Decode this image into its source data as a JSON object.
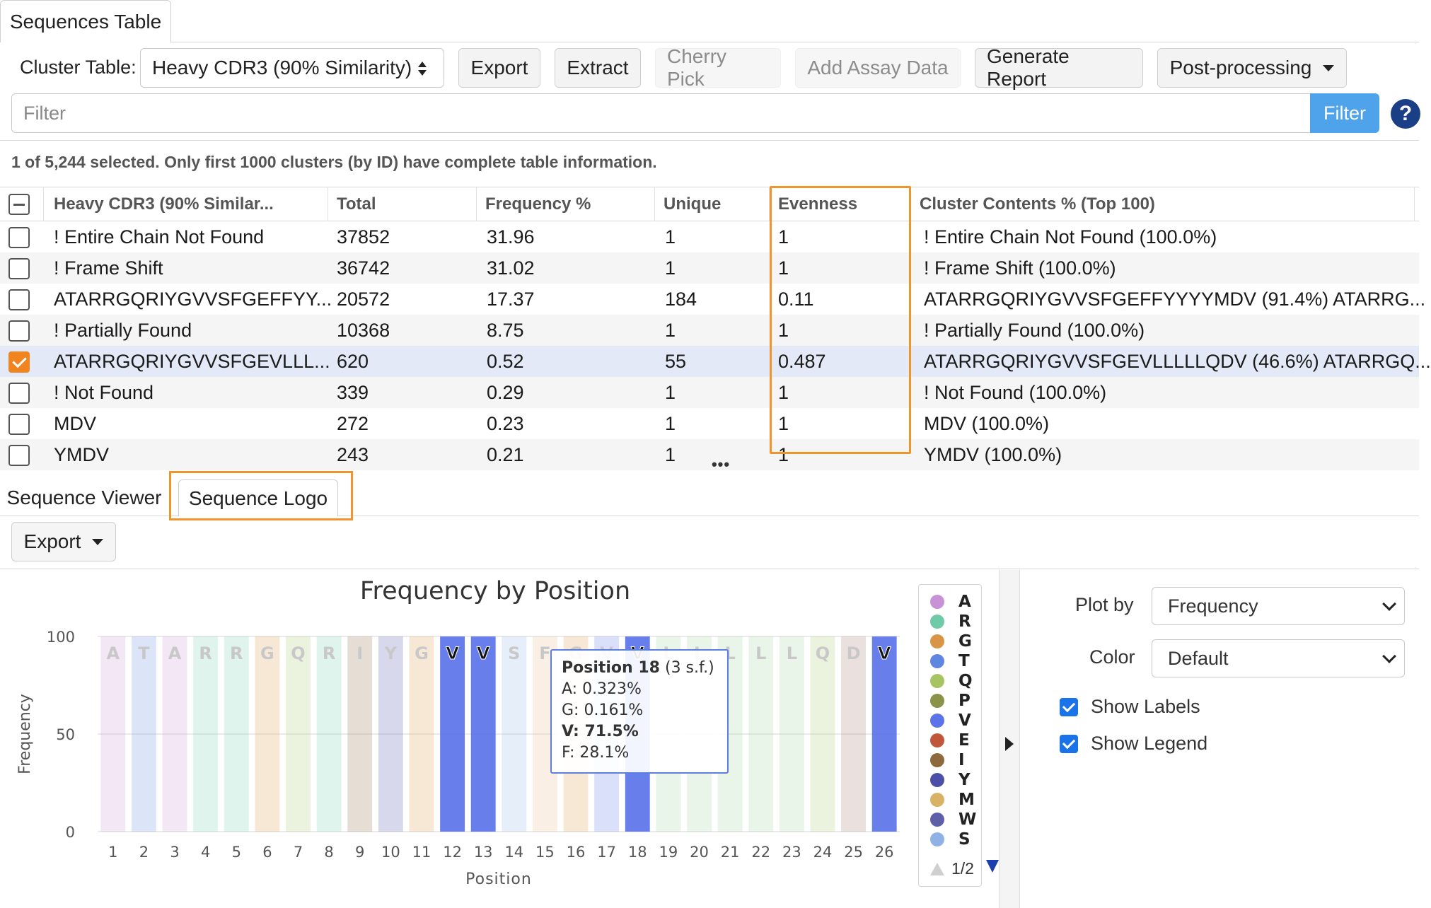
{
  "top_tab": {
    "label": "Sequences Table"
  },
  "toolbar": {
    "cluster_table_label": "Cluster Table:",
    "cluster_table_value": "Heavy CDR3 (90% Similarity)",
    "export": "Export",
    "extract": "Extract",
    "cherry_pick": "Cherry Pick",
    "add_assay_data": "Add Assay Data",
    "generate_report": "Generate Report",
    "post_processing": "Post-processing"
  },
  "filter": {
    "placeholder": "Filter",
    "button": "Filter",
    "help": "?"
  },
  "selection_info": "1 of 5,244 selected. Only first 1000 clusters (by ID) have complete table information.",
  "table": {
    "headers": [
      "Heavy CDR3 (90% Similar...",
      "Total",
      "Frequency %",
      "Unique",
      "Evenness",
      "Cluster Contents % (Top 100)"
    ],
    "rows": [
      {
        "name": "! Entire Chain Not Found",
        "total": "37852",
        "freq": "31.96",
        "unique": "1",
        "evenness": "1",
        "contents": "! Entire Chain Not Found (100.0%)",
        "checked": false
      },
      {
        "name": "! Frame Shift",
        "total": "36742",
        "freq": "31.02",
        "unique": "1",
        "evenness": "1",
        "contents": "! Frame Shift (100.0%)",
        "checked": false
      },
      {
        "name": "ATARRGQRIYGVVSFGEFFYY...",
        "total": "20572",
        "freq": "17.37",
        "unique": "184",
        "evenness": "0.11",
        "contents": "ATARRGQRIYGVVSFGEFFYYYYMDV (91.4%) ATARRG...",
        "checked": false
      },
      {
        "name": "! Partially Found",
        "total": "10368",
        "freq": "8.75",
        "unique": "1",
        "evenness": "1",
        "contents": "! Partially Found (100.0%)",
        "checked": false
      },
      {
        "name": "ATARRGQRIYGVVSFGEVLLL...",
        "total": "620",
        "freq": "0.52",
        "unique": "55",
        "evenness": "0.487",
        "contents": "ATARRGQRIYGVVSFGEVLLLLLQDV (46.6%) ATARRGQ...",
        "checked": true
      },
      {
        "name": "! Not Found",
        "total": "339",
        "freq": "0.29",
        "unique": "1",
        "evenness": "1",
        "contents": "! Not Found (100.0%)",
        "checked": false
      },
      {
        "name": "MDV",
        "total": "272",
        "freq": "0.23",
        "unique": "1",
        "evenness": "1",
        "contents": "MDV (100.0%)",
        "checked": false
      },
      {
        "name": "YMDV",
        "total": "243",
        "freq": "0.21",
        "unique": "1",
        "evenness": "1",
        "contents": "YMDV (100.0%)",
        "checked": false
      }
    ]
  },
  "resize_handle": "•••",
  "lower_tabs": {
    "viewer": "Sequence Viewer",
    "logo": "Sequence Logo"
  },
  "logo_export": "Export",
  "chart_data": {
    "type": "bar",
    "title": "Frequency by Position",
    "xlabel": "Position",
    "ylabel": "Frequency",
    "ylim": [
      0,
      100
    ],
    "yticks": [
      0,
      50,
      100
    ],
    "categories": [
      "1",
      "2",
      "3",
      "4",
      "5",
      "6",
      "7",
      "8",
      "9",
      "10",
      "11",
      "12",
      "13",
      "14",
      "15",
      "16",
      "17",
      "18",
      "19",
      "20",
      "21",
      "22",
      "23",
      "24",
      "25",
      "26"
    ],
    "letters": [
      "A",
      "T",
      "A",
      "R",
      "R",
      "G",
      "Q",
      "R",
      "I",
      "Y",
      "G",
      "V",
      "V",
      "S",
      "F",
      "G",
      "V",
      "V",
      "L",
      "L",
      "L",
      "L",
      "L",
      "Q",
      "D",
      "V"
    ],
    "highlighted": [
      false,
      false,
      false,
      false,
      false,
      false,
      false,
      false,
      false,
      false,
      false,
      true,
      true,
      false,
      false,
      false,
      false,
      true,
      false,
      false,
      false,
      false,
      false,
      false,
      false,
      true
    ],
    "series": [
      {
        "values": [
          100,
          100,
          100,
          100,
          100,
          100,
          100,
          100,
          100,
          100,
          100,
          100,
          100,
          100,
          100,
          100,
          100,
          100,
          100,
          100,
          100,
          100,
          100,
          100,
          100,
          100
        ]
      }
    ],
    "legend": [
      {
        "letter": "A",
        "color": "#c792d6"
      },
      {
        "letter": "R",
        "color": "#6fcba7"
      },
      {
        "letter": "G",
        "color": "#d99445"
      },
      {
        "letter": "T",
        "color": "#5f86e0"
      },
      {
        "letter": "Q",
        "color": "#a6c462"
      },
      {
        "letter": "P",
        "color": "#8a9348"
      },
      {
        "letter": "V",
        "color": "#5b73e8"
      },
      {
        "letter": "E",
        "color": "#c0573b"
      },
      {
        "letter": "I",
        "color": "#8d6a3c"
      },
      {
        "letter": "Y",
        "color": "#4a4fa8"
      },
      {
        "letter": "M",
        "color": "#d8b366"
      },
      {
        "letter": "W",
        "color": "#5d60a8"
      },
      {
        "letter": "S",
        "color": "#8fb1e6"
      }
    ],
    "legend_page": "1/2"
  },
  "tooltip": {
    "title": "Position 18",
    "sf": "(3 s.f.)",
    "lines": [
      "A: 0.323%",
      "G: 0.161%",
      "V: 71.5%",
      "F: 28.1%"
    ]
  },
  "controls": {
    "plot_by_label": "Plot by",
    "plot_by_value": "Frequency",
    "color_label": "Color",
    "color_value": "Default",
    "show_labels": "Show Labels",
    "show_legend": "Show Legend"
  }
}
